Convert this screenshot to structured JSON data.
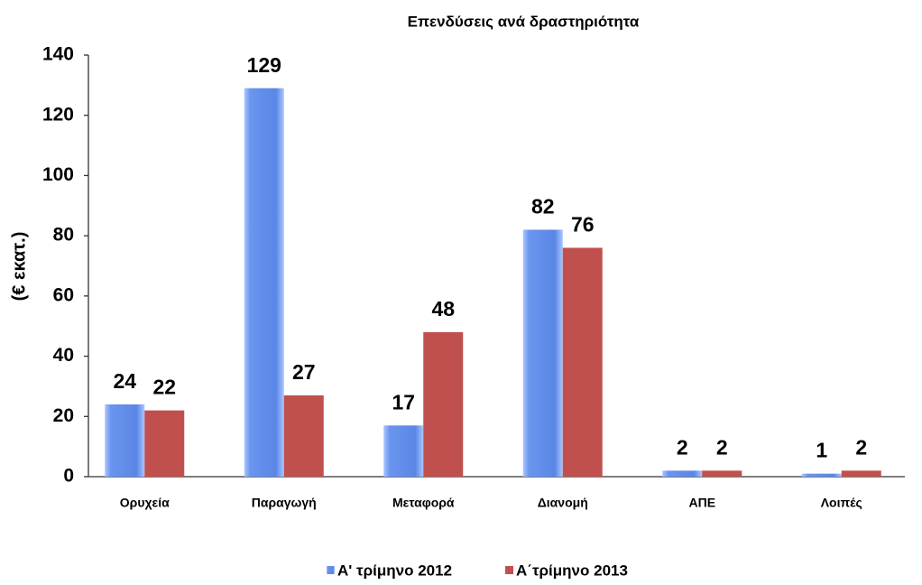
{
  "chart_data": {
    "type": "bar",
    "title": "Επενδύσεις ανά δραστηριότητα",
    "y_label": "(€ εκατ.)",
    "categories": [
      "Ορυχεία",
      "Παραγωγή",
      "Μεταφορά",
      "Διανομή",
      "ΑΠΕ",
      "Λοιπές"
    ],
    "series": [
      {
        "name": "Α' τρίμηνο 2012",
        "color": "#6a95ee",
        "values": [
          24,
          129,
          17,
          82,
          2,
          1
        ]
      },
      {
        "name": "Α΄τρίμηνο  2013",
        "color": "#c0504d",
        "values": [
          22,
          27,
          48,
          76,
          2,
          2
        ]
      }
    ],
    "ylim": [
      0,
      140
    ],
    "yticks": [
      0,
      20,
      40,
      60,
      80,
      100,
      120,
      140
    ],
    "grid": false,
    "legend": "bottom"
  }
}
